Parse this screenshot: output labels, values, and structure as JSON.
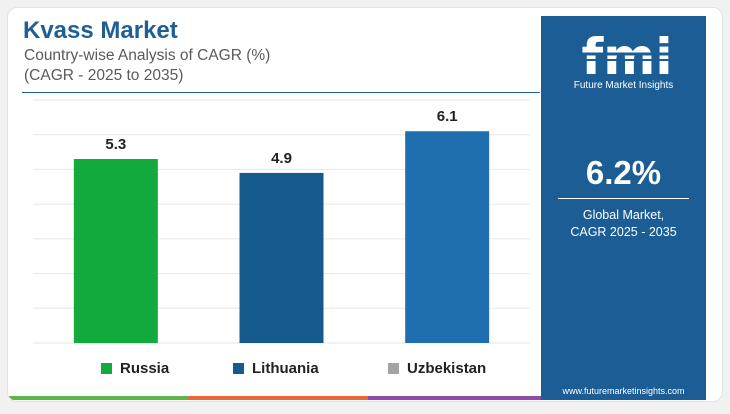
{
  "header": {
    "title": "Kvass Market",
    "subtitle_line1": "Country-wise Analysis of CAGR (%)",
    "subtitle_line2": "(CAGR - 2025 to 2035)"
  },
  "sidebar": {
    "brand": "fmi",
    "brand_caption": "Future Market Insights",
    "headline_value": "6.2%",
    "headline_label_line1": "Global Market,",
    "headline_label_line2": "CAGR 2025 - 2035",
    "url": "www.futuremarketinsights.com"
  },
  "colors": {
    "brand_blue": "#1c5d96",
    "russia": "#12aa3c",
    "lithuania": "#145a8c",
    "uzbekistan": "#1f6eb0",
    "uzbekistan_legend": "#a3a3a3"
  },
  "chart_data": {
    "type": "bar",
    "categories": [
      "Russia",
      "Lithuania",
      "Uzbekistan"
    ],
    "values": [
      5.3,
      4.9,
      6.1
    ],
    "data_labels": [
      "5.3",
      "4.9",
      "6.1"
    ],
    "bar_colors": [
      "#12aa3c",
      "#145a8c",
      "#1f6eb0"
    ],
    "legend": [
      "Russia",
      "Lithuania",
      "Uzbekistan"
    ],
    "legend_colors": [
      "#12aa3c",
      "#145a8c",
      "#a3a3a3"
    ],
    "legend_position": "bottom",
    "ylim": [
      0,
      7
    ],
    "grid": true
  }
}
